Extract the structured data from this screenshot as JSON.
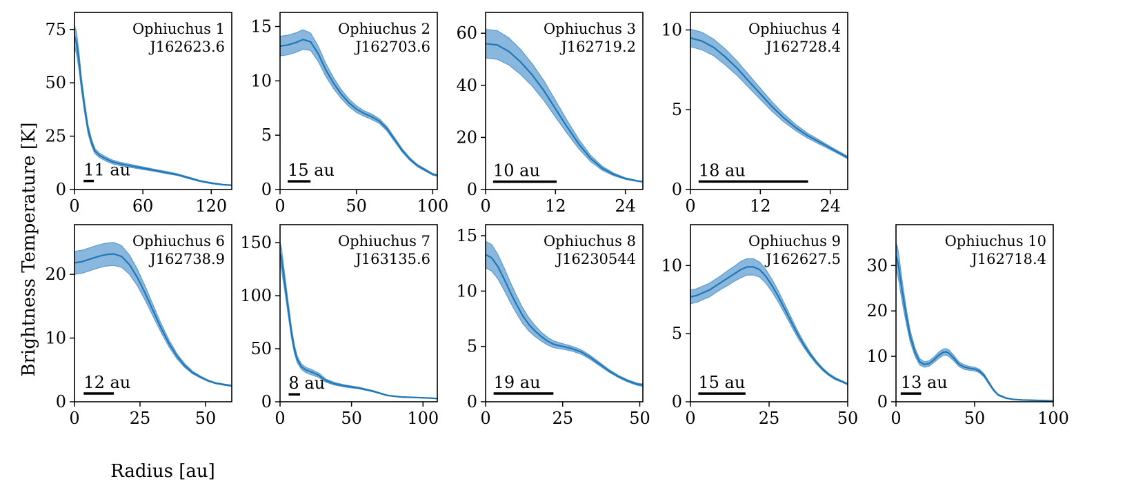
{
  "figure": {
    "ylabel": "Brightness Temperature [K]",
    "xlabel": "Radius [au]"
  },
  "colors": {
    "line": "#1f77b4",
    "band": "#5b9bd0",
    "scalebar": "#000000"
  },
  "chart_data": [
    {
      "type": "line",
      "name": "Ophiuchus 1",
      "id": "J162623.6",
      "xlim": [
        0,
        138
      ],
      "ylim": [
        0,
        83
      ],
      "xticks": [
        0,
        60,
        120
      ],
      "yticks": [
        0,
        25,
        50,
        75
      ],
      "scalebar": {
        "label": "11 au",
        "x0": 8,
        "x1": 17,
        "y": 4
      },
      "x": [
        0,
        2,
        4,
        6,
        9,
        12,
        15,
        18,
        22,
        27,
        33,
        40,
        50,
        60,
        70,
        80,
        90,
        100,
        110,
        120,
        130,
        138
      ],
      "y": [
        72,
        68,
        60,
        50,
        38,
        28,
        22,
        18,
        16,
        14.5,
        13,
        12,
        11,
        10,
        9,
        8,
        7,
        5.5,
        4,
        3,
        2.3,
        2
      ],
      "err": [
        5,
        5,
        4,
        3,
        2.5,
        2,
        1.5,
        1.2,
        1,
        1,
        0.9,
        0.8,
        0.7,
        0.6,
        0.5,
        0.5,
        0.4,
        0.4,
        0.3,
        0.3,
        0.2,
        0.2
      ]
    },
    {
      "type": "line",
      "name": "Ophiuchus 2",
      "id": "J162703.6",
      "xlim": [
        0,
        103
      ],
      "ylim": [
        0,
        16.3
      ],
      "xticks": [
        0,
        50,
        100
      ],
      "yticks": [
        0,
        5,
        10,
        15
      ],
      "scalebar": {
        "label": "15 au",
        "x0": 5,
        "x1": 20,
        "y": 0.75
      },
      "x": [
        0,
        5,
        10,
        15,
        20,
        25,
        30,
        35,
        40,
        45,
        50,
        55,
        60,
        65,
        70,
        75,
        80,
        85,
        90,
        95,
        100,
        103
      ],
      "y": [
        13.2,
        13.3,
        13.5,
        13.8,
        13.6,
        12.5,
        11,
        9.8,
        8.8,
        8,
        7.4,
        7,
        6.7,
        6.3,
        5.6,
        4.6,
        3.6,
        2.8,
        2.2,
        1.8,
        1.4,
        1.3
      ],
      "err": [
        0.9,
        0.9,
        0.9,
        0.9,
        0.8,
        0.7,
        0.6,
        0.5,
        0.4,
        0.35,
        0.3,
        0.25,
        0.25,
        0.22,
        0.2,
        0.18,
        0.15,
        0.12,
        0.1,
        0.1,
        0.08,
        0.08
      ]
    },
    {
      "type": "line",
      "name": "Ophiuchus 3",
      "id": "J162719.2",
      "xlim": [
        0,
        27
      ],
      "ylim": [
        0,
        68
      ],
      "xticks": [
        0,
        12,
        24
      ],
      "yticks": [
        0,
        20,
        40,
        60
      ],
      "scalebar": {
        "label": "10 au",
        "x0": 1.3,
        "x1": 12.2,
        "y": 3
      },
      "x": [
        0,
        2,
        4,
        6,
        8,
        10,
        12,
        14,
        16,
        18,
        20,
        22,
        24,
        26,
        27
      ],
      "y": [
        56,
        55.5,
        53,
        49,
        44,
        38,
        31,
        24,
        17.5,
        12,
        8.2,
        5.8,
        4.2,
        3.3,
        3
      ],
      "err": [
        5.5,
        5.5,
        5.2,
        4.8,
        4.3,
        3.8,
        3.2,
        2.5,
        1.8,
        1.2,
        0.8,
        0.5,
        0.3,
        0.2,
        0.2
      ]
    },
    {
      "type": "line",
      "name": "Ophiuchus 4",
      "id": "J162728.4",
      "xlim": [
        0,
        27
      ],
      "ylim": [
        0,
        11.1
      ],
      "xticks": [
        0,
        12,
        24
      ],
      "yticks": [
        0,
        5,
        10
      ],
      "scalebar": {
        "label": "18 au",
        "x0": 1.4,
        "x1": 20.2,
        "y": 0.5
      },
      "x": [
        0,
        2,
        4,
        6,
        8,
        10,
        12,
        14,
        16,
        18,
        20,
        22,
        24,
        26,
        27
      ],
      "y": [
        9.5,
        9.3,
        8.9,
        8.3,
        7.6,
        6.8,
        6,
        5.2,
        4.5,
        3.9,
        3.4,
        3,
        2.6,
        2.2,
        2
      ],
      "err": [
        0.55,
        0.55,
        0.52,
        0.5,
        0.45,
        0.4,
        0.35,
        0.3,
        0.25,
        0.2,
        0.16,
        0.13,
        0.1,
        0.08,
        0.08
      ]
    },
    {
      "type": "line",
      "name": "Ophiuchus 6",
      "id": "J162738.9",
      "xlim": [
        0,
        60
      ],
      "ylim": [
        0,
        27.8
      ],
      "xticks": [
        0,
        25,
        50
      ],
      "yticks": [
        0,
        10,
        20
      ],
      "scalebar": {
        "label": "12 au",
        "x0": 3.5,
        "x1": 15,
        "y": 1.3
      },
      "x": [
        0,
        3,
        6,
        9,
        12,
        15,
        18,
        21,
        24,
        27,
        30,
        33,
        36,
        39,
        42,
        45,
        48,
        51,
        54,
        57,
        60
      ],
      "y": [
        21.8,
        22,
        22.4,
        22.8,
        23.1,
        23.2,
        22.8,
        21.5,
        19.5,
        17,
        14.3,
        11.6,
        9.2,
        7.2,
        5.7,
        4.6,
        3.9,
        3.3,
        2.9,
        2.7,
        2.5
      ],
      "err": [
        1.8,
        1.8,
        1.8,
        1.8,
        1.8,
        1.8,
        1.7,
        1.5,
        1.3,
        1.1,
        0.9,
        0.7,
        0.55,
        0.4,
        0.3,
        0.2,
        0.15,
        0.12,
        0.1,
        0.1,
        0.1
      ]
    },
    {
      "type": "line",
      "name": "Ophiuchus 7",
      "id": "J163135.6",
      "xlim": [
        0,
        110
      ],
      "ylim": [
        0,
        167
      ],
      "xticks": [
        0,
        50,
        100
      ],
      "yticks": [
        0,
        50,
        100,
        150
      ],
      "scalebar": {
        "label": "8 au",
        "x0": 6,
        "x1": 14,
        "y": 7
      },
      "x": [
        0,
        1,
        2,
        4,
        6,
        8,
        10,
        12,
        15,
        18,
        22,
        27,
        32,
        38,
        45,
        55,
        65,
        75,
        85,
        95,
        105,
        110
      ],
      "y": [
        140,
        135,
        125,
        105,
        85,
        65,
        50,
        40,
        33,
        30,
        28,
        25,
        20,
        17,
        15,
        13,
        10,
        6,
        4.5,
        4,
        3.5,
        3
      ],
      "err": [
        10,
        10,
        9,
        7,
        6,
        5,
        4,
        3,
        2.5,
        2.5,
        2.5,
        2,
        1.5,
        1.2,
        1,
        0.8,
        0.6,
        0.4,
        0.3,
        0.3,
        0.2,
        0.2
      ]
    },
    {
      "type": "line",
      "name": "Ophiuchus 8",
      "id": "J16230544",
      "xlim": [
        0,
        51
      ],
      "ylim": [
        0,
        16
      ],
      "xticks": [
        0,
        25,
        50
      ],
      "yticks": [
        0,
        5,
        10,
        15
      ],
      "scalebar": {
        "label": "19 au",
        "x0": 2.6,
        "x1": 22,
        "y": 0.75
      },
      "x": [
        0,
        2,
        4,
        6,
        8,
        10,
        12,
        14,
        16,
        18,
        20,
        22,
        25,
        28,
        31,
        34,
        37,
        40,
        43,
        46,
        49,
        51
      ],
      "y": [
        13.3,
        13,
        12.2,
        11.1,
        9.9,
        8.8,
        7.8,
        7,
        6.4,
        5.9,
        5.5,
        5.2,
        5,
        4.8,
        4.5,
        4,
        3.4,
        2.8,
        2.3,
        1.9,
        1.6,
        1.5
      ],
      "err": [
        1.2,
        1.2,
        1.1,
        1,
        0.9,
        0.8,
        0.7,
        0.6,
        0.5,
        0.4,
        0.35,
        0.3,
        0.25,
        0.22,
        0.2,
        0.18,
        0.15,
        0.12,
        0.1,
        0.1,
        0.1,
        0.1
      ]
    },
    {
      "type": "line",
      "name": "Ophiuchus 9",
      "id": "J162627.5",
      "xlim": [
        0,
        50
      ],
      "ylim": [
        0,
        13
      ],
      "xticks": [
        0,
        25,
        50
      ],
      "yticks": [
        0,
        5,
        10
      ],
      "scalebar": {
        "label": "15 au",
        "x0": 2.5,
        "x1": 17.5,
        "y": 0.6
      },
      "x": [
        0,
        2,
        4,
        6,
        8,
        10,
        12,
        14,
        16,
        18,
        20,
        22,
        24,
        26,
        28,
        30,
        32,
        34,
        36,
        38,
        40,
        42,
        44,
        46,
        48,
        50
      ],
      "y": [
        7.7,
        7.8,
        8,
        8.2,
        8.5,
        8.8,
        9.1,
        9.4,
        9.7,
        9.9,
        9.9,
        9.7,
        9.2,
        8.5,
        7.7,
        6.8,
        5.9,
        5,
        4.2,
        3.5,
        2.9,
        2.4,
        2,
        1.7,
        1.5,
        1.3
      ],
      "err": [
        0.5,
        0.5,
        0.5,
        0.5,
        0.5,
        0.5,
        0.55,
        0.55,
        0.6,
        0.6,
        0.6,
        0.55,
        0.5,
        0.45,
        0.4,
        0.35,
        0.3,
        0.25,
        0.2,
        0.15,
        0.12,
        0.1,
        0.08,
        0.08,
        0.06,
        0.06
      ]
    },
    {
      "type": "line",
      "name": "Ophiuchus 10",
      "id": "J162718.4",
      "xlim": [
        0,
        100
      ],
      "ylim": [
        0,
        39
      ],
      "xticks": [
        0,
        50,
        100
      ],
      "yticks": [
        0,
        10,
        20,
        30
      ],
      "scalebar": {
        "label": "13 au",
        "x0": 3,
        "x1": 16,
        "y": 1.8
      },
      "x": [
        0,
        1,
        2,
        3,
        5,
        7,
        9,
        12,
        15,
        18,
        21,
        24,
        27,
        30,
        32,
        34,
        37,
        40,
        43,
        46,
        50,
        53,
        56,
        59,
        62,
        65,
        70,
        75,
        80,
        90,
        100
      ],
      "y": [
        32,
        31,
        29,
        26.5,
        22,
        18,
        14.5,
        11,
        8.8,
        8.2,
        8.4,
        9.2,
        10.2,
        10.9,
        11,
        10.6,
        9.5,
        8.3,
        7.7,
        7.4,
        7.2,
        6.8,
        5.8,
        4.2,
        2.6,
        1.5,
        0.8,
        0.5,
        0.4,
        0.3,
        0.2
      ],
      "err": [
        3,
        3,
        2.8,
        2.5,
        2,
        1.5,
        1.2,
        0.9,
        0.7,
        0.6,
        0.6,
        0.6,
        0.7,
        0.7,
        0.7,
        0.7,
        0.6,
        0.5,
        0.5,
        0.45,
        0.4,
        0.4,
        0.35,
        0.3,
        0.2,
        0.15,
        0.1,
        0.08,
        0.05,
        0.05,
        0.05
      ]
    }
  ]
}
